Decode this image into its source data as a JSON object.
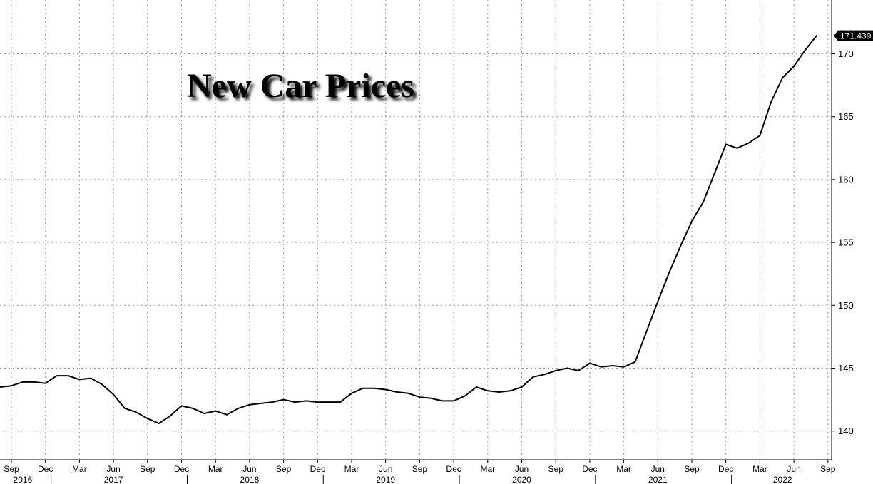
{
  "chart_data": {
    "type": "line",
    "title": "New Car Prices",
    "xlabel": "",
    "ylabel": "",
    "ylim": [
      137.5,
      173.5
    ],
    "yticks": [
      140,
      145,
      150,
      155,
      160,
      165,
      170
    ],
    "grid": true,
    "last_value_label": "171.439",
    "month_ticks": [
      {
        "label": "Sep",
        "date": "2016-09"
      },
      {
        "label": "Dec",
        "date": "2016-12"
      },
      {
        "label": "Mar",
        "date": "2017-03"
      },
      {
        "label": "Jun",
        "date": "2017-06"
      },
      {
        "label": "Sep",
        "date": "2017-09"
      },
      {
        "label": "Dec",
        "date": "2017-12"
      },
      {
        "label": "Mar",
        "date": "2018-03"
      },
      {
        "label": "Jun",
        "date": "2018-06"
      },
      {
        "label": "Sep",
        "date": "2018-09"
      },
      {
        "label": "Dec",
        "date": "2018-12"
      },
      {
        "label": "Mar",
        "date": "2019-03"
      },
      {
        "label": "Jun",
        "date": "2019-06"
      },
      {
        "label": "Sep",
        "date": "2019-09"
      },
      {
        "label": "Dec",
        "date": "2019-12"
      },
      {
        "label": "Mar",
        "date": "2020-03"
      },
      {
        "label": "Jun",
        "date": "2020-06"
      },
      {
        "label": "Sep",
        "date": "2020-09"
      },
      {
        "label": "Dec",
        "date": "2020-12"
      },
      {
        "label": "Mar",
        "date": "2021-03"
      },
      {
        "label": "Jun",
        "date": "2021-06"
      },
      {
        "label": "Sep",
        "date": "2021-09"
      },
      {
        "label": "Dec",
        "date": "2021-12"
      },
      {
        "label": "Mar",
        "date": "2022-03"
      },
      {
        "label": "Jun",
        "date": "2022-06"
      },
      {
        "label": "Sep",
        "date": "2022-09"
      }
    ],
    "year_labels": [
      {
        "label": "2016",
        "date": "2016-10"
      },
      {
        "label": "2017",
        "date": "2017-06"
      },
      {
        "label": "2018",
        "date": "2018-06"
      },
      {
        "label": "2019",
        "date": "2019-06"
      },
      {
        "label": "2020",
        "date": "2020-06"
      },
      {
        "label": "2021",
        "date": "2021-06"
      },
      {
        "label": "2022",
        "date": "2022-05"
      }
    ],
    "series": [
      {
        "x": [
          "2016-08",
          "2016-09",
          "2016-10",
          "2016-11",
          "2016-12",
          "2017-01",
          "2017-02",
          "2017-03",
          "2017-04",
          "2017-05",
          "2017-06",
          "2017-07",
          "2017-08",
          "2017-09",
          "2017-10",
          "2017-11",
          "2017-12",
          "2018-01",
          "2018-02",
          "2018-03",
          "2018-04",
          "2018-05",
          "2018-06",
          "2018-07",
          "2018-08",
          "2018-09",
          "2018-10",
          "2018-11",
          "2018-12",
          "2019-01",
          "2019-02",
          "2019-03",
          "2019-04",
          "2019-05",
          "2019-06",
          "2019-07",
          "2019-08",
          "2019-09",
          "2019-10",
          "2019-11",
          "2019-12",
          "2020-01",
          "2020-02",
          "2020-03",
          "2020-04",
          "2020-05",
          "2020-06",
          "2020-07",
          "2020-08",
          "2020-09",
          "2020-10",
          "2020-11",
          "2020-12",
          "2021-01",
          "2021-02",
          "2021-03",
          "2021-04",
          "2021-05",
          "2021-06",
          "2021-07",
          "2021-08",
          "2021-09",
          "2021-10",
          "2021-11",
          "2021-12",
          "2022-01",
          "2022-02",
          "2022-03",
          "2022-04",
          "2022-05",
          "2022-06",
          "2022-07",
          "2022-08"
        ],
        "values": [
          143.5,
          143.6,
          143.9,
          143.9,
          143.8,
          144.4,
          144.4,
          144.1,
          144.2,
          143.7,
          142.9,
          141.8,
          141.5,
          141.0,
          140.6,
          141.2,
          142.0,
          141.8,
          141.4,
          141.6,
          141.3,
          141.8,
          142.1,
          142.2,
          142.3,
          142.5,
          142.3,
          142.4,
          142.3,
          142.3,
          142.3,
          143.0,
          143.4,
          143.4,
          143.3,
          143.1,
          143.0,
          142.7,
          142.6,
          142.4,
          142.4,
          142.8,
          143.5,
          143.2,
          143.1,
          143.2,
          143.5,
          144.3,
          144.5,
          144.8,
          145.0,
          144.8,
          145.4,
          145.1,
          145.2,
          145.1,
          145.5,
          147.9,
          150.3,
          152.6,
          154.7,
          156.7,
          158.2,
          160.5,
          162.8,
          162.5,
          162.9,
          163.5,
          166.2,
          168.1,
          169.0,
          170.3,
          171.439
        ]
      }
    ]
  }
}
